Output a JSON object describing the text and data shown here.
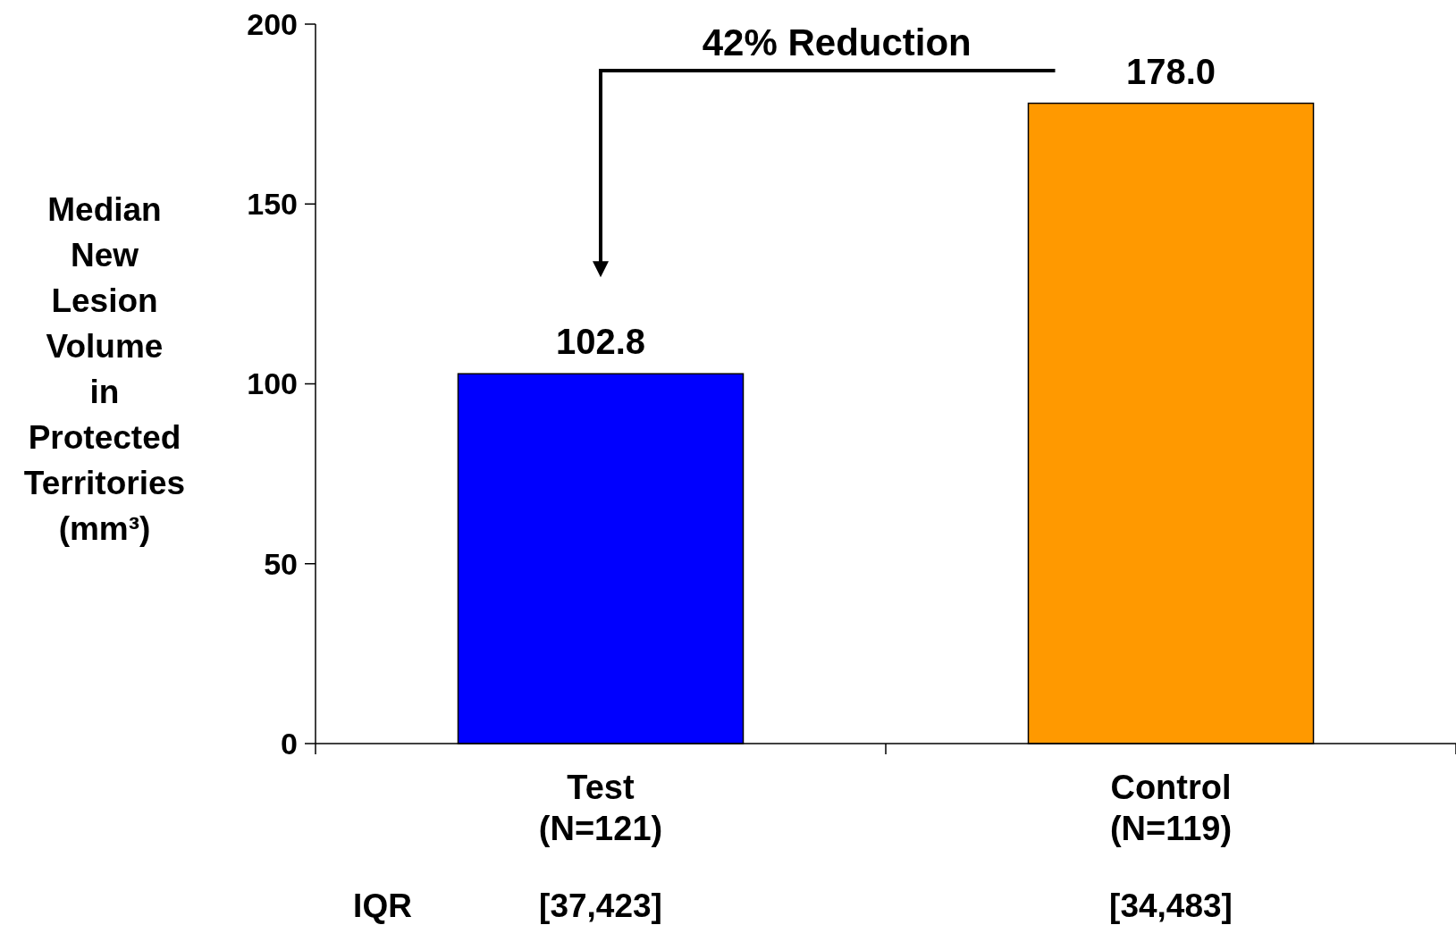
{
  "chart_data": {
    "type": "bar",
    "ylabel": "Median New Lesion Volume in Protected Territories (mm³)",
    "categories": [
      "Test (N=121)",
      "Control (N=119)"
    ],
    "values": [
      102.8,
      178.0
    ],
    "colors": [
      "#0000ff",
      "#ff9900"
    ],
    "value_labels": [
      "102.8",
      "178.0"
    ],
    "ylim": [
      0,
      200
    ],
    "yticks": [
      0,
      50,
      100,
      150,
      200
    ],
    "annotations": [
      "42% Reduction",
      "IQR",
      "[37,423]",
      "[34,483]"
    ]
  }
}
